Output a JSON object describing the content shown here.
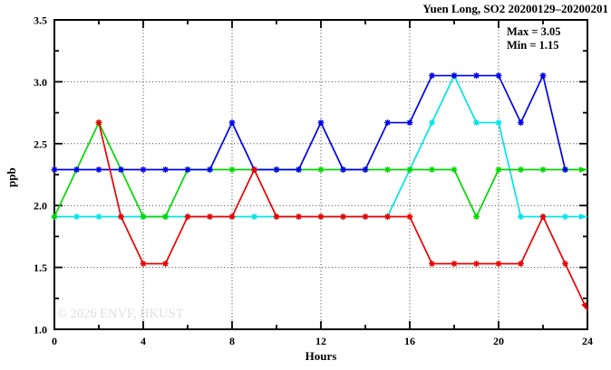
{
  "title": "Yuen Long, SO2 20200129–20200201",
  "annotation": {
    "max_label": "Max = 3.05",
    "min_label": "Min = 1.15"
  },
  "watermark": "© 2026 ENVF, HKUST",
  "colors": {
    "frame": "#000000",
    "grid": "#3a3a3a",
    "watermark": "#dfdfdf",
    "background": "#ffffff"
  },
  "chart_data": {
    "type": "line",
    "title": "Yuen Long, SO2 20200129–20200201",
    "xlabel": "Hours",
    "ylabel": "ppb",
    "xlim": [
      0,
      24
    ],
    "ylim": [
      1.0,
      3.5
    ],
    "x_major_ticks": [
      0,
      4,
      8,
      12,
      16,
      20,
      24
    ],
    "x_minor_ticks": [
      2,
      6,
      10,
      14,
      18,
      22
    ],
    "y_major_ticks": [
      1.0,
      1.5,
      2.0,
      2.5,
      3.0,
      3.5
    ],
    "y_minor_ticks": [
      1.25,
      1.75,
      2.25,
      2.75,
      3.25
    ],
    "x_gridlines": [
      4,
      8,
      12,
      16,
      20
    ],
    "y_gridlines": [
      1.5,
      2.0,
      2.5,
      3.0
    ],
    "grid_style": "dotted",
    "marker": "asterisk",
    "legend_position": "inside-top-right",
    "max": 3.05,
    "min": 1.15,
    "series": [
      {
        "name": "cyan-line",
        "color": "#00e6e6",
        "end_arrow": true,
        "points": [
          [
            0,
            1.91
          ],
          [
            1,
            1.91
          ],
          [
            2,
            1.91
          ],
          [
            3,
            1.91
          ],
          [
            4,
            1.91
          ],
          [
            5,
            1.91
          ],
          [
            6,
            1.91
          ],
          [
            7,
            1.91
          ],
          [
            8,
            1.91
          ],
          [
            9,
            1.91
          ],
          [
            10,
            1.91
          ],
          [
            11,
            1.91
          ],
          [
            12,
            1.91
          ],
          [
            13,
            1.91
          ],
          [
            14,
            1.91
          ],
          [
            15,
            1.91
          ],
          [
            16,
            2.29
          ],
          [
            17,
            2.67
          ],
          [
            18,
            3.05
          ],
          [
            19,
            2.67
          ],
          [
            20,
            2.67
          ],
          [
            21,
            1.91
          ],
          [
            22,
            1.91
          ],
          [
            23,
            1.91
          ],
          [
            24,
            1.91
          ]
        ]
      },
      {
        "name": "green-line",
        "color": "#00d900",
        "end_arrow": true,
        "points": [
          [
            0,
            1.91
          ],
          [
            1,
            2.29
          ],
          [
            2,
            2.67
          ],
          [
            3,
            2.29
          ],
          [
            4,
            1.91
          ],
          [
            5,
            1.91
          ],
          [
            6,
            2.29
          ],
          [
            7,
            2.29
          ],
          [
            8,
            2.29
          ],
          [
            9,
            2.29
          ],
          [
            10,
            2.29
          ],
          [
            11,
            2.29
          ],
          [
            12,
            2.29
          ],
          [
            13,
            2.29
          ],
          [
            14,
            2.29
          ],
          [
            15,
            2.29
          ],
          [
            16,
            2.29
          ],
          [
            17,
            2.29
          ],
          [
            18,
            2.29
          ],
          [
            19,
            1.91
          ],
          [
            20,
            2.29
          ],
          [
            21,
            2.29
          ],
          [
            22,
            2.29
          ],
          [
            23,
            2.29
          ],
          [
            24,
            2.29
          ]
        ]
      },
      {
        "name": "blue-line",
        "color": "#0000ee",
        "end_arrow": false,
        "points": [
          [
            0,
            2.29
          ],
          [
            1,
            2.29
          ],
          [
            2,
            2.29
          ],
          [
            3,
            2.29
          ],
          [
            4,
            2.29
          ],
          [
            5,
            2.29
          ],
          [
            6,
            2.29
          ],
          [
            7,
            2.29
          ],
          [
            8,
            2.67
          ],
          [
            9,
            2.29
          ],
          [
            10,
            2.29
          ],
          [
            11,
            2.29
          ],
          [
            12,
            2.67
          ],
          [
            13,
            2.29
          ],
          [
            14,
            2.29
          ],
          [
            15,
            2.67
          ],
          [
            16,
            2.67
          ],
          [
            17,
            3.05
          ],
          [
            18,
            3.05
          ],
          [
            19,
            3.05
          ],
          [
            20,
            3.05
          ],
          [
            21,
            2.67
          ],
          [
            22,
            3.05
          ],
          [
            23,
            2.29
          ]
        ]
      },
      {
        "name": "red-line",
        "color": "#ee0000",
        "end_arrow": true,
        "points": [
          [
            2,
            2.67
          ],
          [
            3,
            1.91
          ],
          [
            4,
            1.53
          ],
          [
            5,
            1.53
          ],
          [
            6,
            1.91
          ],
          [
            7,
            1.91
          ],
          [
            8,
            1.91
          ],
          [
            9,
            2.29
          ],
          [
            10,
            1.91
          ],
          [
            11,
            1.91
          ],
          [
            12,
            1.91
          ],
          [
            13,
            1.91
          ],
          [
            14,
            1.91
          ],
          [
            15,
            1.91
          ],
          [
            16,
            1.91
          ],
          [
            17,
            1.53
          ],
          [
            18,
            1.53
          ],
          [
            19,
            1.53
          ],
          [
            20,
            1.53
          ],
          [
            21,
            1.53
          ],
          [
            22,
            1.91
          ],
          [
            23,
            1.53
          ],
          [
            24,
            1.15
          ]
        ]
      }
    ]
  }
}
